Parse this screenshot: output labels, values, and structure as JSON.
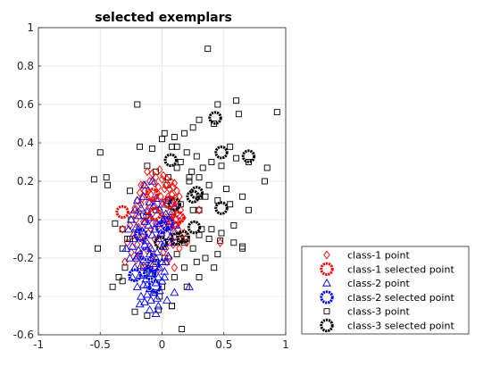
{
  "chart_data": {
    "type": "scatter",
    "title": "selected exemplars",
    "xlabel": "",
    "ylabel": "",
    "xlim": [
      -1,
      1
    ],
    "ylim": [
      -0.6,
      1
    ],
    "xticks": [
      "-1",
      "-0.5",
      "0",
      "0.5",
      "1"
    ],
    "yticks": [
      "-0.6",
      "-0.4",
      "-0.2",
      "0",
      "0.2",
      "0.4",
      "0.6",
      "0.8",
      "1"
    ],
    "grid": true,
    "legend_position": "bottom-right outside",
    "legend": [
      "class-1 point",
      "class-1 selected point",
      "class-2 point",
      "class-2 selected point",
      "class-3 point",
      "class-3 selected point"
    ],
    "series": [
      {
        "name": "class-1 point",
        "marker": "diamond",
        "color": "#ff0000",
        "x": [
          -0.12,
          -0.08,
          -0.05,
          -0.02,
          0.01,
          0.04,
          0.07,
          0.1,
          -0.15,
          -0.1,
          -0.06,
          -0.03,
          0.0,
          0.03,
          0.06,
          0.09,
          0.12,
          -0.18,
          -0.14,
          -0.09,
          -0.04,
          0.02,
          0.05,
          0.08,
          0.11,
          0.14,
          -0.2,
          -0.16,
          -0.11,
          -0.07,
          -0.01,
          0.04,
          0.09,
          0.13,
          -0.22,
          -0.17,
          -0.12,
          -0.06,
          0.0,
          0.06,
          0.1,
          0.15,
          -0.24,
          -0.19,
          -0.13,
          -0.08,
          -0.02,
          0.03,
          0.08,
          0.12,
          0.17,
          -0.21,
          -0.15,
          -0.1,
          -0.05,
          0.01,
          0.07,
          0.11,
          -0.26,
          -0.19,
          -0.14,
          -0.09,
          -0.03,
          0.02,
          0.07,
          0.13,
          0.18,
          -0.23,
          -0.16,
          -0.11,
          -0.06,
          0.0,
          0.05,
          0.1,
          -0.28,
          -0.2,
          -0.15,
          -0.1,
          -0.04,
          0.03,
          0.09,
          0.16,
          -0.25,
          -0.18,
          -0.12,
          -0.07,
          0.01,
          0.06,
          0.14,
          -0.3,
          -0.21,
          -0.15,
          -0.09,
          -0.03,
          0.04,
          0.1,
          0.2,
          -0.17,
          -0.11,
          0.08,
          0.47,
          0.3,
          -0.32
        ],
        "y": [
          0.25,
          0.24,
          0.22,
          0.26,
          0.23,
          0.21,
          0.2,
          0.19,
          0.18,
          0.2,
          0.19,
          0.17,
          0.21,
          0.18,
          0.16,
          0.17,
          0.15,
          0.14,
          0.15,
          0.13,
          0.14,
          0.16,
          0.12,
          0.13,
          0.11,
          0.12,
          0.1,
          0.11,
          0.09,
          0.1,
          0.12,
          0.08,
          0.09,
          0.07,
          0.06,
          0.08,
          0.05,
          0.07,
          0.09,
          0.04,
          0.06,
          0.05,
          0.03,
          0.04,
          0.02,
          0.03,
          0.05,
          0.01,
          0.02,
          0.03,
          0.01,
          0.0,
          -0.01,
          0.0,
          -0.02,
          0.01,
          -0.01,
          0.0,
          -0.03,
          -0.04,
          -0.02,
          -0.05,
          -0.03,
          -0.04,
          -0.06,
          -0.05,
          -0.07,
          -0.08,
          -0.09,
          -0.07,
          -0.1,
          -0.08,
          -0.11,
          -0.09,
          -0.12,
          -0.13,
          -0.11,
          -0.14,
          -0.12,
          -0.15,
          -0.13,
          -0.1,
          -0.17,
          -0.18,
          -0.16,
          -0.19,
          -0.17,
          -0.2,
          -0.15,
          -0.22,
          -0.21,
          -0.24,
          -0.23,
          -0.26,
          -0.22,
          -0.25,
          -0.12,
          0.18,
          0.15,
          0.08,
          -0.12,
          0.05,
          -0.05
        ]
      },
      {
        "name": "class-1 selected point",
        "marker": "circle",
        "color": "#ff0000",
        "x": [
          -0.32,
          -0.08,
          -0.06,
          0.06,
          0.1,
          0.13
        ],
        "y": [
          0.04,
          0.13,
          0.03,
          0.09,
          -0.01,
          0.01
        ]
      },
      {
        "name": "class-2 point",
        "marker": "triangle",
        "color": "#0000ff",
        "x": [
          -0.2,
          -0.15,
          -0.1,
          -0.05,
          0.0,
          0.05,
          0.1,
          -0.22,
          -0.17,
          -0.12,
          -0.07,
          -0.02,
          0.03,
          0.08,
          -0.25,
          -0.19,
          -0.14,
          -0.09,
          -0.04,
          0.01,
          0.06,
          0.11,
          -0.27,
          -0.21,
          -0.16,
          -0.11,
          -0.06,
          -0.01,
          0.04,
          0.09,
          -0.23,
          -0.18,
          -0.13,
          -0.08,
          -0.03,
          0.02,
          0.07,
          -0.29,
          -0.24,
          -0.19,
          -0.14,
          -0.09,
          -0.04,
          0.01,
          0.06,
          -0.26,
          -0.2,
          -0.15,
          -0.1,
          -0.05,
          0.0,
          0.05,
          -0.22,
          -0.17,
          -0.12,
          -0.07,
          -0.02,
          0.03,
          -0.24,
          -0.18,
          -0.13,
          -0.08,
          -0.03,
          0.02,
          -0.2,
          -0.15,
          -0.1,
          -0.05,
          0.0,
          -0.17,
          -0.12,
          -0.07,
          -0.02,
          -0.14,
          -0.09,
          -0.04,
          -0.18,
          -0.1,
          -0.03,
          0.04,
          0.1,
          -0.19,
          -0.09,
          -0.21,
          -0.12,
          -0.05,
          0.02,
          0.22,
          -0.05,
          0.0,
          -0.14,
          -0.08
        ],
        "y": [
          0.1,
          0.12,
          0.09,
          0.11,
          0.08,
          0.1,
          0.07,
          0.05,
          0.06,
          0.04,
          0.07,
          0.05,
          0.03,
          0.04,
          0.0,
          0.02,
          -0.01,
          0.01,
          -0.02,
          0.0,
          -0.01,
          -0.03,
          -0.05,
          -0.04,
          -0.06,
          -0.03,
          -0.05,
          -0.07,
          -0.04,
          -0.06,
          -0.1,
          -0.09,
          -0.11,
          -0.08,
          -0.1,
          -0.12,
          -0.09,
          -0.15,
          -0.14,
          -0.16,
          -0.13,
          -0.15,
          -0.17,
          -0.14,
          -0.12,
          -0.2,
          -0.19,
          -0.21,
          -0.18,
          -0.2,
          -0.22,
          -0.19,
          -0.25,
          -0.24,
          -0.26,
          -0.23,
          -0.25,
          -0.22,
          -0.3,
          -0.29,
          -0.31,
          -0.28,
          -0.3,
          -0.27,
          -0.35,
          -0.34,
          -0.36,
          -0.33,
          -0.32,
          -0.4,
          -0.39,
          -0.38,
          -0.37,
          -0.43,
          -0.42,
          -0.41,
          -0.44,
          -0.47,
          -0.45,
          -0.42,
          -0.38,
          -0.05,
          -0.28,
          -0.2,
          -0.34,
          -0.33,
          -0.3,
          -0.35,
          -0.49,
          -0.22,
          0.18,
          0.2
        ]
      },
      {
        "name": "class-2 selected point",
        "marker": "circle",
        "color": "#0000ff",
        "x": [
          -0.17,
          -0.13,
          -0.1,
          -0.06,
          0.0,
          0.04,
          -0.22,
          -0.07
        ],
        "y": [
          -0.08,
          -0.18,
          -0.28,
          -0.35,
          -0.04,
          -0.02,
          -0.29,
          -0.24
        ]
      },
      {
        "name": "class-3 point",
        "marker": "square",
        "color": "#000000",
        "x": [
          0.37,
          0.93,
          0.6,
          0.62,
          0.45,
          0.3,
          0.25,
          0.18,
          0.1,
          0.02,
          -0.2,
          -0.45,
          -0.55,
          -0.5,
          0.42,
          0.55,
          0.7,
          0.85,
          0.83,
          0.6,
          0.48,
          0.4,
          0.33,
          0.28,
          0.2,
          0.15,
          0.08,
          0.0,
          -0.08,
          -0.18,
          -0.12,
          -0.05,
          0.05,
          0.12,
          0.22,
          0.3,
          0.38,
          0.52,
          0.65,
          0.7,
          0.55,
          0.45,
          0.35,
          0.25,
          0.15,
          0.05,
          -0.05,
          -0.15,
          -0.25,
          -0.32,
          -0.38,
          -0.28,
          -0.2,
          0.1,
          0.2,
          0.3,
          0.4,
          0.48,
          0.58,
          0.65,
          0.58,
          0.45,
          0.35,
          0.25,
          0.18,
          0.12,
          0.02,
          -0.05,
          -0.15,
          -0.3,
          -0.32,
          -0.32,
          -0.4,
          -0.52,
          -0.1,
          0.0,
          0.1,
          0.2,
          0.3,
          0.42,
          0.65,
          0.38,
          0.28,
          0.18,
          0.08,
          -0.02,
          -0.12,
          -0.22,
          0.3,
          0.24,
          0.32,
          0.15,
          -0.26,
          -0.06,
          0.04,
          0.12,
          0.22,
          -0.35,
          -0.44,
          0.16,
          0.08,
          -0.03,
          -0.26,
          0.3,
          0.47
        ],
        "y": [
          0.89,
          0.56,
          0.62,
          0.55,
          0.6,
          0.52,
          0.48,
          0.45,
          0.43,
          0.45,
          0.6,
          0.22,
          0.21,
          0.35,
          0.5,
          0.38,
          0.3,
          0.27,
          0.2,
          0.32,
          0.28,
          0.3,
          0.27,
          0.33,
          0.35,
          0.3,
          0.38,
          0.42,
          0.37,
          0.38,
          0.28,
          0.25,
          0.22,
          0.27,
          0.2,
          0.22,
          0.18,
          0.16,
          0.12,
          0.05,
          0.08,
          0.1,
          0.12,
          0.05,
          0.08,
          0.1,
          0.05,
          0.02,
          0.0,
          -0.05,
          -0.02,
          -0.1,
          -0.08,
          -0.12,
          -0.1,
          -0.08,
          -0.05,
          -0.07,
          -0.03,
          -0.15,
          -0.12,
          -0.18,
          -0.2,
          -0.15,
          -0.12,
          -0.18,
          -0.2,
          -0.22,
          -0.25,
          -0.25,
          -0.15,
          -0.32,
          -0.35,
          -0.15,
          -0.28,
          -0.35,
          -0.3,
          -0.35,
          -0.3,
          -0.25,
          -0.14,
          -0.1,
          -0.22,
          -0.25,
          -0.45,
          -0.4,
          -0.5,
          -0.48,
          0.12,
          0.25,
          -0.05,
          -0.1,
          -0.1,
          -0.38,
          0.18,
          0.38,
          0.22,
          -0.3,
          0.18,
          -0.57,
          -0.45,
          -0.47,
          0.15,
          0.05,
          -0.11
        ]
      },
      {
        "name": "class-3 selected point",
        "marker": "circle",
        "color": "#000000",
        "x": [
          0.43,
          0.7,
          0.48,
          0.48,
          0.07,
          0.28,
          0.26,
          0.1,
          0.17,
          -0.01,
          0.25,
          0.12
        ],
        "y": [
          0.53,
          0.33,
          0.35,
          0.06,
          0.31,
          0.14,
          -0.04,
          0.08,
          -0.09,
          -0.12,
          0.12,
          -0.1
        ]
      }
    ]
  }
}
